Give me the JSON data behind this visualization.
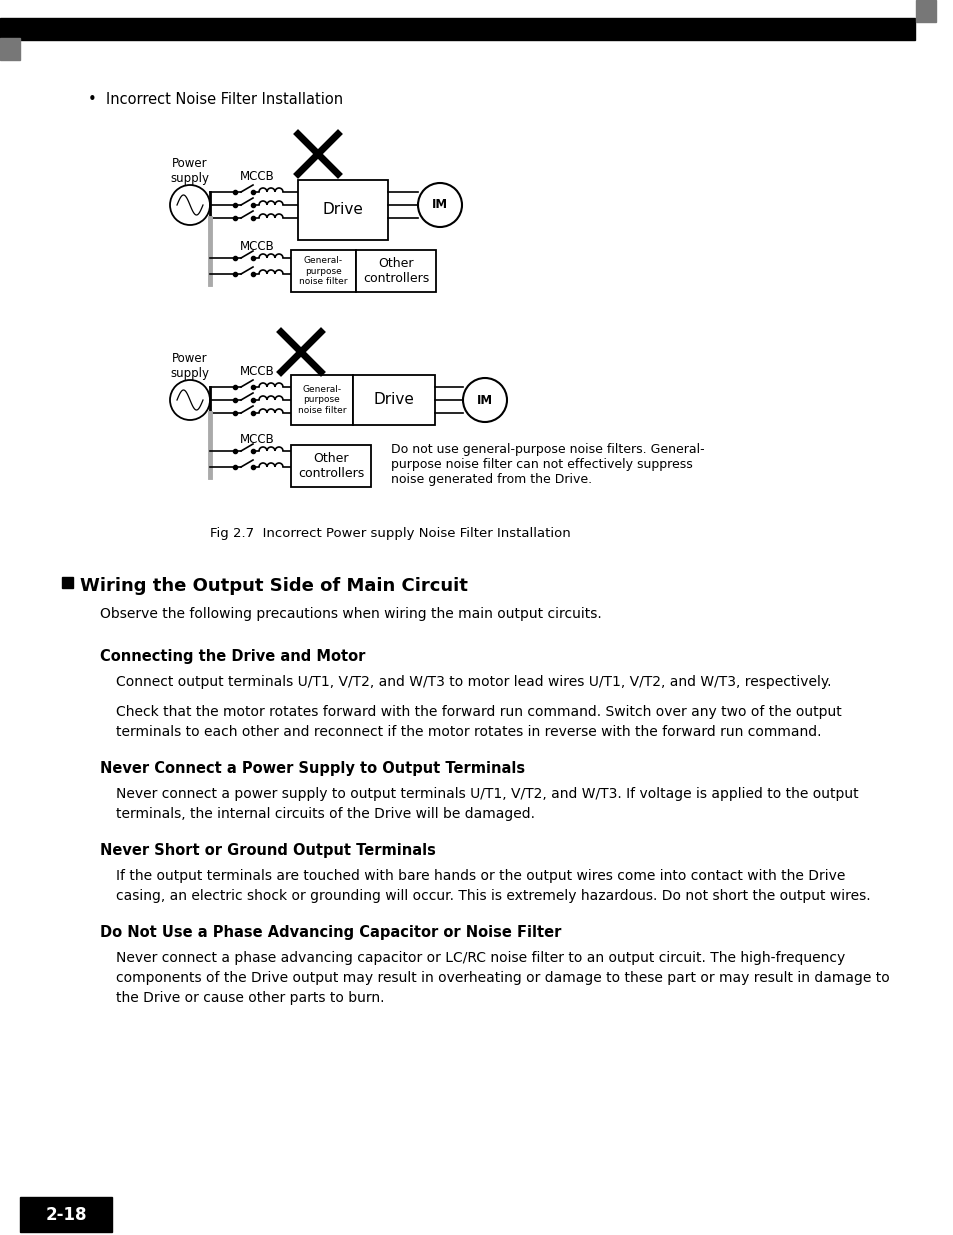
{
  "page_num": "2-18",
  "bg_color": "#ffffff",
  "bullet_text": "Incorrect Noise Filter Installation",
  "fig_caption": "Fig 2.7  Incorrect Power supply Noise Filter Installation",
  "section_title": "Wiring the Output Side of Main Circuit",
  "section_intro": "Observe the following precautions when wiring the main output circuits.",
  "subsections": [
    {
      "title": "Connecting the Drive and Motor",
      "lines": [
        "Connect output terminals U/T1, V/T2, and W/T3 to motor lead wires U/T1, V/T2, and W/T3, respectively.",
        "",
        "Check that the motor rotates forward with the forward run command. Switch over any two of the output",
        "terminals to each other and reconnect if the motor rotates in reverse with the forward run command."
      ]
    },
    {
      "title": "Never Connect a Power Supply to Output Terminals",
      "lines": [
        "Never connect a power supply to output terminals U/T1, V/T2, and W/T3. If voltage is applied to the output",
        "terminals, the internal circuits of the Drive will be damaged."
      ]
    },
    {
      "title": "Never Short or Ground Output Terminals",
      "lines": [
        "If the output terminals are touched with bare hands or the output wires come into contact with the Drive",
        "casing, an electric shock or grounding will occur. This is extremely hazardous. Do not short the output wires."
      ]
    },
    {
      "title": "Do Not Use a Phase Advancing Capacitor or Noise Filter",
      "lines": [
        "Never connect a phase advancing capacitor or LC/RC noise filter to an output circuit. The high-frequency",
        "components of the Drive output may result in overheating or damage to these part or may result in damage to",
        "the Drive or cause other parts to burn."
      ]
    }
  ],
  "note_text": "Do not use general-purpose noise filters. General-\npurpose noise filter can not effectively suppress\nnoise generated from the Drive."
}
